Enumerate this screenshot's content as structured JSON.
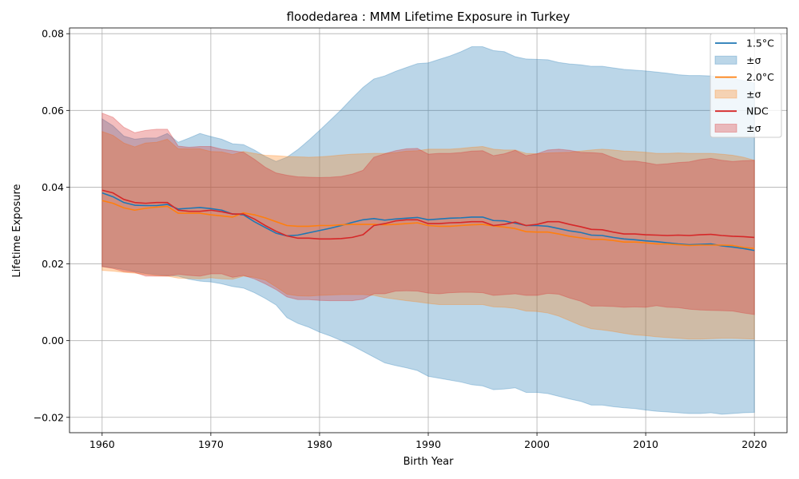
{
  "chart_data": {
    "type": "line",
    "title": "floodedarea : MMM Lifetime Exposure in Turkey",
    "xlabel": "Birth Year",
    "ylabel": "Lifetime Exposure",
    "xlim": [
      1957,
      2023
    ],
    "ylim": [
      -0.024,
      0.0815
    ],
    "xticks": [
      1960,
      1970,
      1980,
      1990,
      2000,
      2010,
      2020
    ],
    "xtick_labels": [
      "1960",
      "1970",
      "1980",
      "1990",
      "2000",
      "2010",
      "2020"
    ],
    "yticks": [
      -0.02,
      0.0,
      0.02,
      0.04,
      0.06,
      0.08
    ],
    "ytick_labels": [
      "−0.02",
      "0.00",
      "0.02",
      "0.04",
      "0.06",
      "0.08"
    ],
    "grid": true,
    "legend_position": "top-right",
    "x": [
      1960,
      1961,
      1962,
      1963,
      1964,
      1965,
      1966,
      1967,
      1968,
      1969,
      1970,
      1971,
      1972,
      1973,
      1974,
      1975,
      1976,
      1977,
      1978,
      1979,
      1980,
      1981,
      1982,
      1983,
      1984,
      1985,
      1986,
      1987,
      1988,
      1989,
      1990,
      1991,
      1992,
      1993,
      1994,
      1995,
      1996,
      1997,
      1998,
      1999,
      2000,
      2001,
      2002,
      2003,
      2004,
      2005,
      2006,
      2007,
      2008,
      2009,
      2010,
      2011,
      2012,
      2013,
      2014,
      2015,
      2016,
      2017,
      2018,
      2019,
      2020
    ],
    "series": [
      {
        "name": "1.5°C",
        "band_label": "±σ",
        "color": "#1f77b4",
        "band_color": "#1f77b4",
        "mean": [
          0.0385,
          0.0375,
          0.036,
          0.0353,
          0.0352,
          0.0352,
          0.0355,
          0.0343,
          0.0345,
          0.0347,
          0.0344,
          0.034,
          0.033,
          0.0328,
          0.031,
          0.0295,
          0.028,
          0.0273,
          0.0275,
          0.0281,
          0.0287,
          0.0293,
          0.03,
          0.0308,
          0.0315,
          0.0318,
          0.0314,
          0.0317,
          0.0319,
          0.0321,
          0.0315,
          0.0317,
          0.0319,
          0.032,
          0.0322,
          0.0322,
          0.0313,
          0.0312,
          0.0306,
          0.03,
          0.03,
          0.0298,
          0.0292,
          0.0286,
          0.0282,
          0.0275,
          0.0274,
          0.0269,
          0.0265,
          0.0263,
          0.026,
          0.0258,
          0.0255,
          0.0252,
          0.025,
          0.0251,
          0.0252,
          0.0247,
          0.0244,
          0.024,
          0.0235
        ],
        "upper": [
          0.0578,
          0.056,
          0.0533,
          0.0525,
          0.0528,
          0.0528,
          0.054,
          0.0517,
          0.0528,
          0.054,
          0.0532,
          0.0525,
          0.0513,
          0.0511,
          0.0497,
          0.048,
          0.0467,
          0.0478,
          0.0498,
          0.0522,
          0.0548,
          0.0575,
          0.0602,
          0.0632,
          0.066,
          0.0682,
          0.069,
          0.0702,
          0.0712,
          0.0722,
          0.0724,
          0.0733,
          0.0742,
          0.0753,
          0.0766,
          0.0766,
          0.0756,
          0.0753,
          0.074,
          0.0734,
          0.0733,
          0.0732,
          0.0725,
          0.0721,
          0.0719,
          0.0715,
          0.0715,
          0.0711,
          0.0707,
          0.0705,
          0.0703,
          0.07,
          0.0697,
          0.0693,
          0.0691,
          0.0691,
          0.069,
          0.0687,
          0.0683,
          0.0678,
          0.0671
        ],
        "lower": [
          0.0193,
          0.019,
          0.0185,
          0.018,
          0.0175,
          0.0172,
          0.017,
          0.0168,
          0.016,
          0.0155,
          0.0153,
          0.0148,
          0.0141,
          0.0137,
          0.0125,
          0.011,
          0.0093,
          0.006,
          0.0045,
          0.0035,
          0.0022,
          0.0012,
          0.0,
          -0.0013,
          -0.0028,
          -0.0043,
          -0.0058,
          -0.0065,
          -0.0071,
          -0.0078,
          -0.0093,
          -0.0098,
          -0.0103,
          -0.0108,
          -0.0115,
          -0.0118,
          -0.0128,
          -0.0126,
          -0.0123,
          -0.0135,
          -0.0135,
          -0.0138,
          -0.0145,
          -0.0152,
          -0.0158,
          -0.0168,
          -0.0168,
          -0.0172,
          -0.0175,
          -0.0177,
          -0.0181,
          -0.0184,
          -0.0186,
          -0.0188,
          -0.019,
          -0.019,
          -0.0188,
          -0.0192,
          -0.019,
          -0.0188,
          -0.0187
        ]
      },
      {
        "name": "2.0°C",
        "band_label": "±σ",
        "color": "#ff7f0e",
        "band_color": "#ff7f0e",
        "mean": [
          0.0365,
          0.0358,
          0.0346,
          0.034,
          0.0345,
          0.0348,
          0.035,
          0.0332,
          0.0332,
          0.0332,
          0.0328,
          0.0325,
          0.0322,
          0.0333,
          0.0328,
          0.032,
          0.031,
          0.03,
          0.0298,
          0.0298,
          0.03,
          0.03,
          0.0302,
          0.0303,
          0.0303,
          0.0303,
          0.0302,
          0.0303,
          0.0305,
          0.0307,
          0.03,
          0.0298,
          0.0298,
          0.03,
          0.0302,
          0.0303,
          0.0299,
          0.0296,
          0.0292,
          0.0284,
          0.0283,
          0.0283,
          0.0278,
          0.0272,
          0.0268,
          0.0264,
          0.0264,
          0.0261,
          0.0257,
          0.0257,
          0.0255,
          0.0252,
          0.0252,
          0.025,
          0.0248,
          0.0249,
          0.0249,
          0.0249,
          0.0248,
          0.0243,
          0.024
        ],
        "upper": [
          0.0545,
          0.0535,
          0.0515,
          0.0505,
          0.0515,
          0.0517,
          0.0525,
          0.05,
          0.05,
          0.05,
          0.0493,
          0.0492,
          0.0485,
          0.0493,
          0.0488,
          0.0483,
          0.0482,
          0.048,
          0.0479,
          0.0478,
          0.0479,
          0.0481,
          0.0484,
          0.0486,
          0.0487,
          0.0488,
          0.0488,
          0.049,
          0.0494,
          0.0495,
          0.0499,
          0.0499,
          0.0499,
          0.0501,
          0.0504,
          0.0506,
          0.0499,
          0.0497,
          0.0497,
          0.0488,
          0.0487,
          0.0489,
          0.049,
          0.0491,
          0.0494,
          0.0497,
          0.0499,
          0.0497,
          0.0494,
          0.0493,
          0.0491,
          0.0488,
          0.0488,
          0.0489,
          0.0488,
          0.0488,
          0.0488,
          0.0486,
          0.0483,
          0.0478,
          0.047
        ],
        "lower": [
          0.0183,
          0.0181,
          0.0178,
          0.0176,
          0.0172,
          0.0169,
          0.0168,
          0.0163,
          0.0162,
          0.0161,
          0.0164,
          0.0161,
          0.016,
          0.0168,
          0.0165,
          0.0158,
          0.014,
          0.0121,
          0.0117,
          0.0116,
          0.0118,
          0.0119,
          0.012,
          0.012,
          0.012,
          0.0118,
          0.0112,
          0.0108,
          0.0104,
          0.0101,
          0.0097,
          0.0094,
          0.0094,
          0.0094,
          0.0094,
          0.0094,
          0.0088,
          0.0087,
          0.0084,
          0.0077,
          0.0076,
          0.0072,
          0.0064,
          0.0052,
          0.004,
          0.0031,
          0.0028,
          0.0024,
          0.0019,
          0.0015,
          0.0013,
          0.001,
          0.0008,
          0.0006,
          0.0004,
          0.0004,
          0.0005,
          0.0006,
          0.0006,
          0.0005,
          0.0004
        ]
      },
      {
        "name": "NDC",
        "band_label": "±σ",
        "color": "#d62728",
        "band_color": "#d62728",
        "mean": [
          0.0392,
          0.0385,
          0.0368,
          0.036,
          0.0358,
          0.036,
          0.036,
          0.034,
          0.0337,
          0.0337,
          0.034,
          0.0336,
          0.033,
          0.033,
          0.0317,
          0.03,
          0.0285,
          0.0273,
          0.0267,
          0.0267,
          0.0265,
          0.0265,
          0.0266,
          0.0269,
          0.0276,
          0.03,
          0.0305,
          0.0312,
          0.0315,
          0.0315,
          0.0305,
          0.0305,
          0.0307,
          0.0308,
          0.031,
          0.031,
          0.03,
          0.0303,
          0.0309,
          0.03,
          0.0303,
          0.031,
          0.031,
          0.0303,
          0.0297,
          0.029,
          0.0289,
          0.0283,
          0.0278,
          0.0278,
          0.0276,
          0.0275,
          0.0274,
          0.0275,
          0.0274,
          0.0276,
          0.0277,
          0.0274,
          0.0272,
          0.0271,
          0.0269
        ],
        "upper": [
          0.0593,
          0.0582,
          0.0556,
          0.0542,
          0.0548,
          0.0551,
          0.0551,
          0.0507,
          0.0504,
          0.0506,
          0.0506,
          0.0499,
          0.0495,
          0.0491,
          0.0473,
          0.0452,
          0.0437,
          0.0431,
          0.0427,
          0.0426,
          0.0425,
          0.0426,
          0.0428,
          0.0434,
          0.0444,
          0.0478,
          0.0487,
          0.0495,
          0.05,
          0.0501,
          0.0486,
          0.0488,
          0.0488,
          0.049,
          0.0494,
          0.0495,
          0.0482,
          0.0487,
          0.0496,
          0.0482,
          0.0487,
          0.0497,
          0.0499,
          0.0496,
          0.0491,
          0.049,
          0.0488,
          0.0477,
          0.0468,
          0.0468,
          0.0464,
          0.0459,
          0.0461,
          0.0464,
          0.0466,
          0.0472,
          0.0475,
          0.047,
          0.0467,
          0.0469,
          0.047
        ],
        "lower": [
          0.0193,
          0.0188,
          0.018,
          0.0178,
          0.0168,
          0.0168,
          0.0168,
          0.0173,
          0.017,
          0.0168,
          0.0174,
          0.0174,
          0.0165,
          0.017,
          0.0161,
          0.0148,
          0.0133,
          0.0114,
          0.0107,
          0.0107,
          0.0105,
          0.0104,
          0.0104,
          0.0104,
          0.0108,
          0.0122,
          0.0122,
          0.0129,
          0.013,
          0.0129,
          0.0124,
          0.0122,
          0.0125,
          0.0126,
          0.0126,
          0.0125,
          0.0118,
          0.012,
          0.0122,
          0.0118,
          0.0118,
          0.0123,
          0.0121,
          0.0111,
          0.0103,
          0.009,
          0.009,
          0.0089,
          0.0087,
          0.0088,
          0.0087,
          0.0091,
          0.0087,
          0.0086,
          0.0082,
          0.008,
          0.0079,
          0.0078,
          0.0077,
          0.0072,
          0.0068
        ]
      }
    ]
  }
}
